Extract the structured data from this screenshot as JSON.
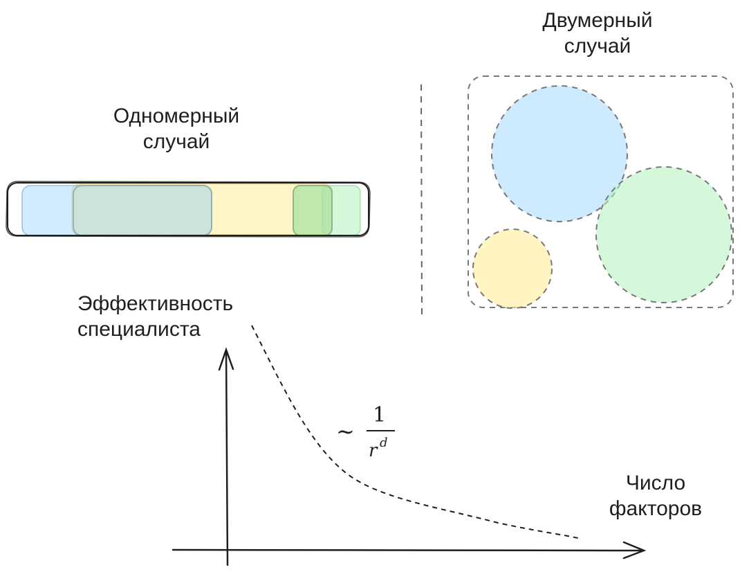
{
  "labels": {
    "one_d_title": "Одномерный\nслучай",
    "two_d_title": "Двумерный\nслучай",
    "y_axis_label": "Эффективность\nспециалиста",
    "x_axis_label": "Число\nфакторов"
  },
  "formula": {
    "tilde": "∼",
    "numerator": "1",
    "denominator_base": "r",
    "denominator_exp": "d"
  },
  "colors": {
    "blue": "#a5d8ff",
    "yellow": "#ffec99",
    "green": "#b2f2bb",
    "stroke": "#1e1e1e",
    "dashed_stroke": "#777777"
  }
}
